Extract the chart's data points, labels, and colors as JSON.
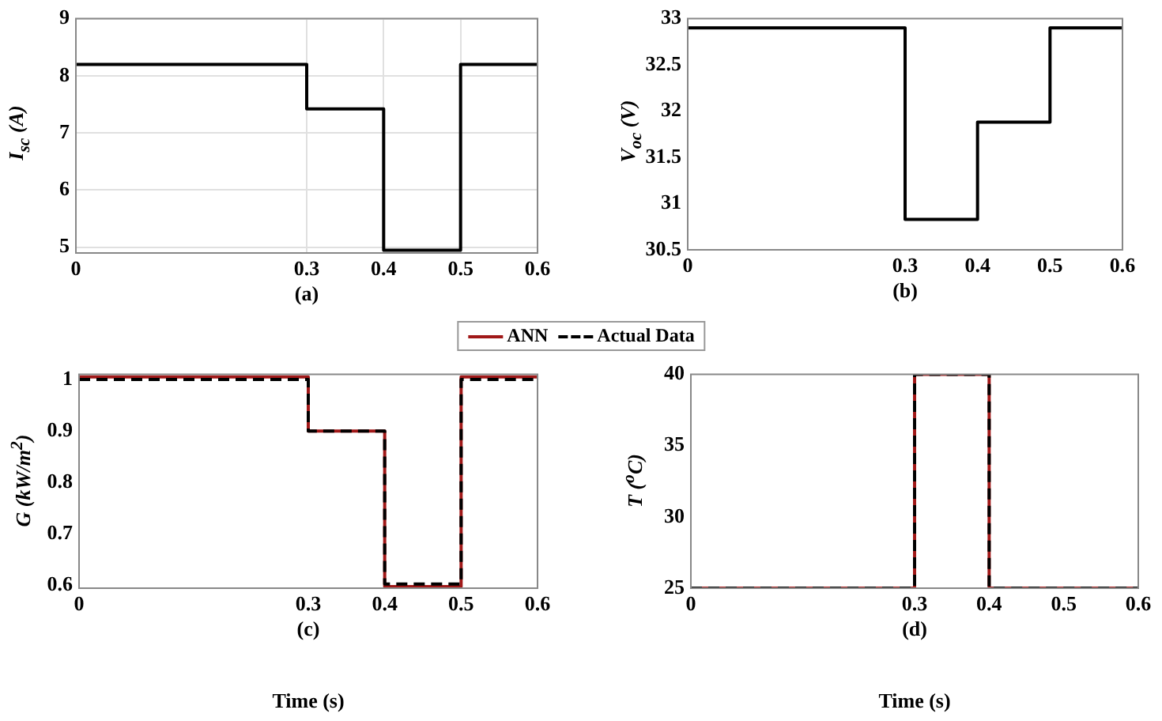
{
  "chart_data": [
    {
      "type": "step",
      "ylabel": "I$_{sc}$ (A)",
      "annotations": [
        "(a)"
      ],
      "x": [
        0,
        0.3,
        0.4,
        0.5,
        0.6
      ],
      "xlim": [
        0,
        0.6
      ],
      "xticks": [
        0,
        0.3,
        0.4,
        0.5,
        0.6
      ],
      "ylim": [
        4.9,
        9
      ],
      "yticks": [
        5,
        6,
        7,
        8,
        9
      ],
      "grid": true,
      "marker": "none",
      "series": [
        {
          "color": "#000000",
          "values": [
            8.2,
            7.42,
            4.95,
            8.2,
            8.2
          ]
        }
      ]
    },
    {
      "type": "step",
      "ylabel": "V$_{oc}$ (V)",
      "annotations": [
        "(b)"
      ],
      "x": [
        0,
        0.3,
        0.4,
        0.5,
        0.6
      ],
      "xlim": [
        0,
        0.6
      ],
      "xticks": [
        0,
        0.3,
        0.4,
        0.5,
        0.6
      ],
      "ylim": [
        30.5,
        33
      ],
      "yticks": [
        30.5,
        31,
        31.5,
        32,
        32.5,
        33
      ],
      "marker": "none",
      "series": [
        {
          "color": "#000000",
          "values": [
            32.9,
            30.83,
            31.88,
            32.9,
            32.9
          ]
        }
      ]
    },
    {
      "type": "step",
      "ylabel": "G (kW/m$^{2}$)",
      "xlabel": "Time (s)",
      "annotations": [
        "(c)"
      ],
      "x": [
        0,
        0.3,
        0.4,
        0.5,
        0.6
      ],
      "xlim": [
        0,
        0.6
      ],
      "xticks": [
        0,
        0.3,
        0.4,
        0.5,
        0.6
      ],
      "ylim": [
        0.595,
        1.01
      ],
      "yticks": [
        0.6,
        0.7,
        0.8,
        0.9,
        1
      ],
      "legend": "top",
      "marker": "none",
      "series": [
        {
          "name": "ANN",
          "color": "#a01818",
          "line_style": "solid",
          "values": [
            1.005,
            0.9,
            0.598,
            1.005,
            1.005
          ]
        },
        {
          "name": "Actual Data",
          "color": "#000000",
          "line_style": "dashed",
          "values": [
            1,
            0.9,
            0.603,
            1,
            1
          ]
        }
      ]
    },
    {
      "type": "step",
      "ylabel": "T ($^{o}$C)",
      "xlabel": "Time (s)",
      "annotations": [
        "(d)"
      ],
      "x": [
        0,
        0.3,
        0.4,
        0.5,
        0.6
      ],
      "xlim": [
        0,
        0.6
      ],
      "xticks": [
        0,
        0.3,
        0.4,
        0.5,
        0.6
      ],
      "ylim": [
        25,
        40
      ],
      "yticks": [
        25,
        30,
        35,
        40
      ],
      "legend": "top",
      "marker": "none",
      "series": [
        {
          "name": "ANN",
          "color": "#a01818",
          "line_style": "solid",
          "values": [
            25,
            40,
            25,
            25,
            25
          ]
        },
        {
          "name": "Actual Data",
          "color": "#000000",
          "line_style": "dashed",
          "values": [
            25,
            40,
            25,
            25,
            25
          ]
        }
      ]
    }
  ]
}
